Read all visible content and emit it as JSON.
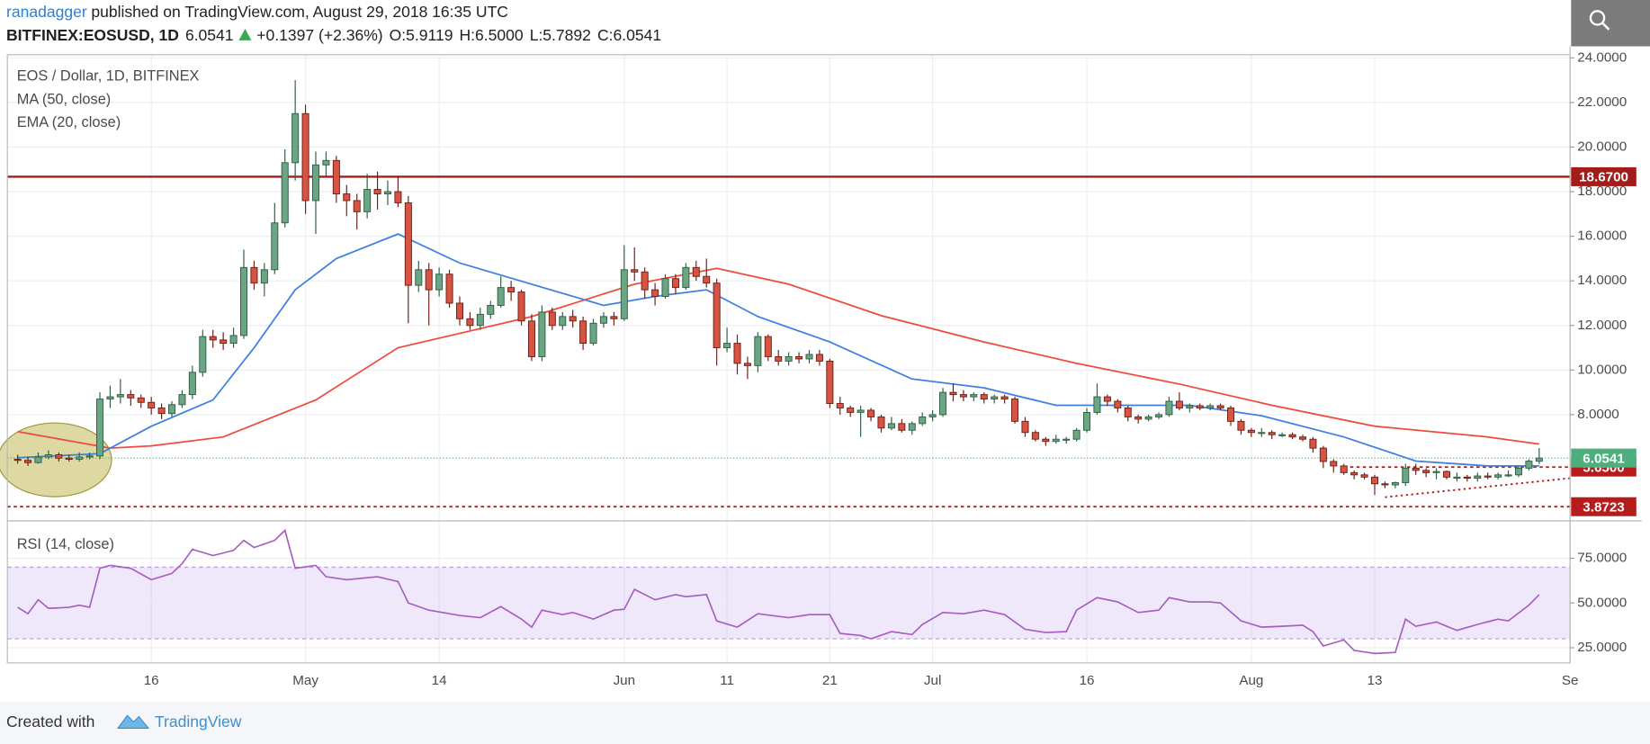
{
  "header": {
    "author": "ranadagger",
    "published": "published on TradingView.com, August 29, 2018 16:35 UTC",
    "symbol": "BITFINEX:EOSUSD, 1D",
    "change": "+0.1397 (+2.36%)",
    "ohlc": [
      "O:5.9119",
      "H:6.5000",
      "L:5.7892",
      "C:6.0541"
    ]
  },
  "footer": {
    "created": "Created with",
    "brand": "TradingView"
  },
  "chart_data": {
    "type": "candlestick",
    "title": "EOS / Dollar, 1D, BITFINEX",
    "up_color": "#6ba583",
    "down_color": "#d75442",
    "xlim": [
      "Apr 2",
      "Sep 1"
    ],
    "xticks": [
      {
        "value": "Apr 16",
        "label": "16"
      },
      {
        "value": "May 1",
        "label": "May"
      },
      {
        "value": "May 14",
        "label": "14"
      },
      {
        "value": "Jun 1",
        "label": "Jun"
      },
      {
        "value": "Jun 11",
        "label": "11"
      },
      {
        "value": "Jun 21",
        "label": "21"
      },
      {
        "value": "Jul 1",
        "label": "Jul"
      },
      {
        "value": "Jul 16",
        "label": "16"
      },
      {
        "value": "Aug 1",
        "label": "Aug"
      },
      {
        "value": "Aug 13",
        "label": "13"
      },
      {
        "value": "Sep 1",
        "label": "Se"
      }
    ],
    "ylim": [
      3.33,
      24.14
    ],
    "yticks": [
      {
        "value": 8,
        "label": "8.0000"
      },
      {
        "value": 10,
        "label": "10.0000"
      },
      {
        "value": 12,
        "label": "12.0000"
      },
      {
        "value": 14,
        "label": "14.0000"
      },
      {
        "value": 16,
        "label": "16.0000"
      },
      {
        "value": 18,
        "label": "18.0000"
      },
      {
        "value": 20,
        "label": "20.0000"
      },
      {
        "value": 22,
        "label": "22.0000"
      },
      {
        "value": 24,
        "label": "24.0000"
      }
    ],
    "grid": true,
    "x": [
      "Apr 3",
      "Apr 4",
      "Apr 5",
      "Apr 6",
      "Apr 7",
      "Apr 8",
      "Apr 9",
      "Apr 10",
      "Apr 11",
      "Apr 12",
      "Apr 13",
      "Apr 14",
      "Apr 15",
      "Apr 16",
      "Apr 17",
      "Apr 18",
      "Apr 19",
      "Apr 20",
      "Apr 21",
      "Apr 22",
      "Apr 23",
      "Apr 24",
      "Apr 25",
      "Apr 26",
      "Apr 27",
      "Apr 28",
      "Apr 29",
      "Apr 30",
      "May 1",
      "May 2",
      "May 3",
      "May 4",
      "May 5",
      "May 6",
      "May 7",
      "May 8",
      "May 9",
      "May 10",
      "May 11",
      "May 12",
      "May 13",
      "May 14",
      "May 15",
      "May 16",
      "May 17",
      "May 18",
      "May 19",
      "May 20",
      "May 21",
      "May 22",
      "May 23",
      "May 24",
      "May 25",
      "May 26",
      "May 27",
      "May 28",
      "May 29",
      "May 30",
      "May 31",
      "Jun 1",
      "Jun 2",
      "Jun 3",
      "Jun 4",
      "Jun 5",
      "Jun 6",
      "Jun 7",
      "Jun 8",
      "Jun 9",
      "Jun 10",
      "Jun 11",
      "Jun 12",
      "Jun 13",
      "Jun 14",
      "Jun 15",
      "Jun 16",
      "Jun 17",
      "Jun 18",
      "Jun 19",
      "Jun 20",
      "Jun 21",
      "Jun 22",
      "Jun 23",
      "Jun 24",
      "Jun 25",
      "Jun 26",
      "Jun 27",
      "Jun 28",
      "Jun 29",
      "Jun 30",
      "Jul 1",
      "Jul 2",
      "Jul 3",
      "Jul 4",
      "Jul 5",
      "Jul 6",
      "Jul 7",
      "Jul 8",
      "Jul 9",
      "Jul 10",
      "Jul 11",
      "Jul 12",
      "Jul 13",
      "Jul 14",
      "Jul 15",
      "Jul 16",
      "Jul 17",
      "Jul 18",
      "Jul 19",
      "Jul 20",
      "Jul 21",
      "Jul 22",
      "Jul 23",
      "Jul 24",
      "Jul 25",
      "Jul 26",
      "Jul 27",
      "Jul 28",
      "Jul 29",
      "Jul 30",
      "Jul 31",
      "Aug 1",
      "Aug 2",
      "Aug 3",
      "Aug 4",
      "Aug 5",
      "Aug 6",
      "Aug 7",
      "Aug 8",
      "Aug 9",
      "Aug 10",
      "Aug 11",
      "Aug 12",
      "Aug 13",
      "Aug 14",
      "Aug 15",
      "Aug 16",
      "Aug 17",
      "Aug 18",
      "Aug 19",
      "Aug 20",
      "Aug 21",
      "Aug 22",
      "Aug 23",
      "Aug 24",
      "Aug 25",
      "Aug 26",
      "Aug 27",
      "Aug 28",
      "Aug 29"
    ],
    "open": [
      6,
      5.95,
      5.85,
      6.1,
      6.2,
      6.05,
      6,
      6.1,
      6.15,
      8.7,
      8.8,
      8.9,
      8.75,
      8.55,
      8.3,
      8.05,
      8.45,
      8.9,
      9.9,
      11.5,
      11.35,
      11.2,
      11.55,
      14.6,
      13.9,
      14.5,
      16.6,
      19.3,
      21.5,
      17.6,
      19.2,
      19.4,
      17.9,
      17.6,
      17.1,
      18.1,
      17.9,
      18,
      17.5,
      13.8,
      14.5,
      13.6,
      14.3,
      13,
      12.3,
      12,
      12.5,
      12.9,
      13.7,
      13.5,
      12.2,
      10.6,
      12.6,
      12,
      12.4,
      12.2,
      11.2,
      12.1,
      12.4,
      12.3,
      14.5,
      14.4,
      13.6,
      13.3,
      14.1,
      13.7,
      14.6,
      14.2,
      13.9,
      11,
      11.2,
      10.3,
      10.2,
      11.5,
      10.6,
      10.4,
      10.6,
      10.5,
      10.7,
      10.4,
      8.5,
      8.3,
      8.1,
      8.2,
      7.9,
      7.4,
      7.6,
      7.3,
      7.6,
      7.9,
      8,
      9,
      8.9,
      8.8,
      8.9,
      8.7,
      8.8,
      8.7,
      7.7,
      7.2,
      6.9,
      6.8,
      6.9,
      6.9,
      7.3,
      8.1,
      8.8,
      8.6,
      8.3,
      7.9,
      7.8,
      7.9,
      8,
      8.6,
      8.3,
      8.4,
      8.3,
      8.4,
      8.3,
      7.7,
      7.3,
      7.2,
      7.2,
      7.1,
      7.1,
      7,
      6.9,
      6.5,
      5.9,
      5.7,
      5.4,
      5.3,
      5.2,
      4.9,
      4.85,
      4.95,
      5.6,
      5.5,
      5.4,
      5.45,
      5.2,
      5.2,
      5.15,
      5.25,
      5.2,
      5.3,
      5.3,
      5.6,
      5.9119
    ],
    "high": [
      6.2,
      6.1,
      6.3,
      6.4,
      6.3,
      6.2,
      6.3,
      6.3,
      9,
      9.3,
      9.6,
      9.1,
      8.9,
      8.8,
      8.5,
      8.6,
      9.1,
      10.2,
      11.8,
      11.8,
      11.7,
      11.9,
      15.4,
      14.9,
      14.8,
      17.5,
      19.9,
      23,
      21.9,
      19.8,
      19.8,
      19.6,
      18.3,
      17.9,
      18.8,
      18.9,
      18.5,
      18.7,
      17.8,
      14.9,
      14.8,
      14.6,
      14.5,
      13.3,
      12.6,
      12.8,
      13.1,
      14.2,
      14,
      13.6,
      12.5,
      12.9,
      12.8,
      12.6,
      12.7,
      12.4,
      12.3,
      12.6,
      12.6,
      15.6,
      15.5,
      14.6,
      13.9,
      14.3,
      14.3,
      14.8,
      14.9,
      15,
      14.1,
      11.9,
      11.6,
      10.6,
      11.7,
      11.6,
      10.9,
      10.8,
      10.8,
      10.9,
      10.9,
      10.5,
      8.8,
      8.4,
      8.4,
      8.3,
      8,
      7.9,
      7.8,
      7.7,
      8.1,
      8.2,
      9.2,
      9.4,
      9.1,
      9,
      9,
      8.9,
      8.9,
      8.8,
      7.9,
      7.3,
      7,
      7.1,
      7,
      7.4,
      8.3,
      9.4,
      8.9,
      8.7,
      8.4,
      8,
      8,
      8.1,
      8.8,
      9,
      8.5,
      8.5,
      8.5,
      8.5,
      8.4,
      7.8,
      7.4,
      7.4,
      7.3,
      7.2,
      7.2,
      7.1,
      7,
      6.6,
      6,
      5.8,
      5.5,
      5.4,
      5.3,
      5,
      5,
      5.8,
      5.8,
      5.6,
      5.6,
      5.5,
      5.4,
      5.3,
      5.4,
      5.4,
      5.4,
      5.5,
      5.7,
      6,
      6.5
    ],
    "low": [
      5.8,
      5.7,
      5.8,
      6,
      5.9,
      5.9,
      5.9,
      6,
      6,
      8.3,
      8.5,
      8.4,
      8.3,
      8,
      7.8,
      7.9,
      8.3,
      8.7,
      9.7,
      11,
      10.9,
      11,
      11.4,
      13.6,
      13.3,
      14.3,
      16.4,
      18.5,
      17,
      16.1,
      18.7,
      17.5,
      16.9,
      16.3,
      16.8,
      17.2,
      17.4,
      17.3,
      12.1,
      13.5,
      12,
      13.3,
      12.8,
      12,
      11.8,
      11.8,
      12.3,
      12.8,
      13.1,
      12,
      10.4,
      10.4,
      11.8,
      11.8,
      11.9,
      10.9,
      11.1,
      11.9,
      12,
      12.2,
      14,
      13.2,
      12.9,
      13.2,
      13.4,
      13.6,
      14,
      13.7,
      10.2,
      10.8,
      9.8,
      9.6,
      9.9,
      10.4,
      10.2,
      10.2,
      10.3,
      10.3,
      10.2,
      8.3,
      8,
      7.9,
      7,
      7.7,
      7.2,
      7.3,
      7.2,
      7.1,
      7.5,
      7.7,
      7.9,
      8.6,
      8.6,
      8.6,
      8.5,
      8.5,
      8.5,
      7.6,
      7,
      6.8,
      6.6,
      6.7,
      6.7,
      6.8,
      7.2,
      8,
      8.4,
      8.1,
      7.7,
      7.6,
      7.7,
      7.8,
      7.9,
      8.2,
      8.1,
      8.2,
      8.2,
      8.2,
      7.5,
      7.1,
      7,
      7,
      6.9,
      7,
      6.9,
      6.8,
      6.3,
      5.6,
      5.4,
      5.3,
      5.1,
      5.1,
      4.4,
      4.7,
      4.7,
      4.8,
      5.3,
      5.2,
      5.1,
      5.1,
      5,
      5,
      5,
      5.1,
      5.1,
      5.2,
      5.2,
      5.5,
      5.7892
    ],
    "close": [
      5.95,
      5.85,
      6.1,
      6.2,
      6.05,
      6,
      6.1,
      6.15,
      8.7,
      8.8,
      8.9,
      8.75,
      8.55,
      8.3,
      8.05,
      8.45,
      8.9,
      9.9,
      11.5,
      11.35,
      11.2,
      11.55,
      14.6,
      13.9,
      14.5,
      16.6,
      19.3,
      21.5,
      17.6,
      19.2,
      19.4,
      17.9,
      17.6,
      17.1,
      18.1,
      17.9,
      18,
      17.5,
      13.8,
      14.5,
      13.6,
      14.3,
      13,
      12.3,
      12,
      12.5,
      12.9,
      13.7,
      13.5,
      12.2,
      10.6,
      12.6,
      12,
      12.4,
      12.2,
      11.2,
      12.1,
      12.4,
      12.3,
      14.5,
      14.4,
      13.6,
      13.3,
      14.1,
      13.7,
      14.6,
      14.2,
      13.9,
      11,
      11.2,
      10.3,
      10.2,
      11.5,
      10.6,
      10.4,
      10.6,
      10.5,
      10.7,
      10.4,
      8.5,
      8.3,
      8.1,
      8.2,
      7.9,
      7.4,
      7.6,
      7.3,
      7.6,
      7.9,
      8,
      9,
      8.9,
      8.8,
      8.9,
      8.7,
      8.8,
      8.7,
      7.7,
      7.2,
      6.9,
      6.8,
      6.9,
      6.9,
      7.3,
      8.1,
      8.8,
      8.6,
      8.3,
      7.9,
      7.8,
      7.9,
      8,
      8.6,
      8.3,
      8.4,
      8.3,
      8.4,
      8.3,
      7.7,
      7.3,
      7.2,
      7.2,
      7.1,
      7.1,
      7,
      6.9,
      6.5,
      5.9,
      5.7,
      5.4,
      5.3,
      5.2,
      4.9,
      4.85,
      4.95,
      5.6,
      5.5,
      5.4,
      5.45,
      5.2,
      5.2,
      5.15,
      5.25,
      5.2,
      5.3,
      5.3,
      5.6,
      5.9144,
      6.0541
    ],
    "last_color": "#4caf7d",
    "series": [
      {
        "name": "MA (50, close)",
        "color": "#ef4a3c",
        "x": [
          "Apr 3",
          "Apr 12",
          "Apr 16",
          "Apr 23",
          "May 2",
          "May 10",
          "May 23",
          "Jun 2",
          "Jun 10",
          "Jun 17",
          "Jun 26",
          "Jul 6",
          "Jul 15",
          "Jul 25",
          "Aug 3",
          "Aug 13",
          "Aug 24",
          "Aug 29"
        ],
        "values": [
          7.24,
          6.5,
          6.6,
          7.0,
          8.66,
          11.0,
          12.4,
          13.85,
          14.56,
          13.85,
          12.44,
          11.26,
          10.3,
          9.37,
          8.42,
          7.48,
          7.0,
          6.68
        ]
      },
      {
        "name": "EMA (20, close)",
        "color": "#3f7fe0",
        "x": [
          "Apr 3",
          "Apr 11",
          "Apr 16",
          "Apr 22",
          "Apr 26",
          "Apr 30",
          "May 4",
          "May 10",
          "May 16",
          "May 23",
          "May 30",
          "Jun 4",
          "Jun 9",
          "Jun 14",
          "Jun 21",
          "Jun 29",
          "Jul 6",
          "Jul 13",
          "Jul 19",
          "Jul 26",
          "Aug 2",
          "Aug 10",
          "Aug 17",
          "Aug 24",
          "Aug 29"
        ],
        "values": [
          6.07,
          6.25,
          7.48,
          8.66,
          11.0,
          13.6,
          15.0,
          16.1,
          14.8,
          13.85,
          12.9,
          13.3,
          13.6,
          12.4,
          11.26,
          9.6,
          9.2,
          8.42,
          8.42,
          8.42,
          7.95,
          7.0,
          5.92,
          5.7,
          5.7
        ]
      }
    ],
    "levels": [
      {
        "value": 18.67,
        "label": "18.6700",
        "color": "#a31c1c",
        "style": "solid"
      },
      {
        "value": 5.65,
        "label": "5.6500",
        "color": "#b71c1c",
        "style": "dashed",
        "from": "Aug 10"
      },
      {
        "value": 3.8723,
        "label": "3.8723",
        "color": "#b71c1c",
        "style": "dashed"
      }
    ],
    "trendline": {
      "x": [
        "Aug 14",
        "Sep 1"
      ],
      "values": [
        4.3,
        5.15
      ],
      "color": "#b71c1c"
    },
    "rsi": {
      "name": "RSI (14, close)",
      "color": "#a65cc0",
      "band": [
        30,
        70
      ],
      "ylim": [
        16.5,
        94.7
      ],
      "yticks": [
        {
          "value": 25,
          "label": "25.0000"
        },
        {
          "value": 50,
          "label": "50.0000"
        },
        {
          "value": 75,
          "label": "75.0000"
        }
      ],
      "x": [
        "Apr 3",
        "Apr 4",
        "Apr 5",
        "Apr 6",
        "Apr 8",
        "Apr 9",
        "Apr 10",
        "Apr 11",
        "Apr 12",
        "Apr 14",
        "Apr 16",
        "Apr 18",
        "Apr 19",
        "Apr 20",
        "Apr 22",
        "Apr 24",
        "Apr 25",
        "Apr 26",
        "Apr 28",
        "Apr 29",
        "Apr 30",
        "May 2",
        "May 3",
        "May 5",
        "May 8",
        "May 10",
        "May 11",
        "May 13",
        "May 16",
        "May 18",
        "May 20",
        "May 22",
        "May 23",
        "May 24",
        "May 26",
        "May 27",
        "May 29",
        "May 31",
        "Jun 1",
        "Jun 2",
        "Jun 4",
        "Jun 6",
        "Jun 7",
        "Jun 9",
        "Jun 10",
        "Jun 12",
        "Jun 14",
        "Jun 17",
        "Jun 19",
        "Jun 21",
        "Jun 22",
        "Jun 24",
        "Jun 25",
        "Jun 27",
        "Jun 29",
        "Jun 30",
        "Jul 2",
        "Jul 4",
        "Jul 6",
        "Jul 8",
        "Jul 10",
        "Jul 12",
        "Jul 14",
        "Jul 15",
        "Jul 17",
        "Jul 19",
        "Jul 21",
        "Jul 23",
        "Jul 24",
        "Jul 26",
        "Jul 28",
        "Jul 29",
        "Jul 31",
        "Aug 2",
        "Aug 4",
        "Aug 6",
        "Aug 7",
        "Aug 8",
        "Aug 10",
        "Aug 11",
        "Aug 13",
        "Aug 15",
        "Aug 16",
        "Aug 17",
        "Aug 19",
        "Aug 21",
        "Aug 23",
        "Aug 25",
        "Aug 26",
        "Aug 28",
        "Aug 29"
      ],
      "values": [
        47.6,
        44,
        51.8,
        47,
        47.6,
        48.8,
        47.6,
        69.4,
        71,
        69.4,
        63,
        66.5,
        72,
        80,
        76.5,
        79.4,
        85,
        81,
        85,
        90.6,
        69.4,
        71,
        64.7,
        63,
        64.7,
        62,
        50,
        46,
        43,
        41.8,
        48,
        41,
        36.5,
        46,
        43.5,
        44.7,
        41,
        46,
        46.5,
        57.6,
        51.8,
        54.7,
        53.5,
        54.7,
        40,
        36.5,
        44,
        41.8,
        43.5,
        43.5,
        33,
        31.8,
        30,
        34,
        32.4,
        38,
        44.7,
        44,
        46,
        43.5,
        35.3,
        33.5,
        34,
        46,
        53,
        50.6,
        44.7,
        46,
        53,
        50.6,
        50.6,
        50,
        40,
        36.5,
        37,
        37.6,
        34,
        26,
        29.4,
        23.5,
        21.8,
        22.4,
        41,
        37,
        39.4,
        34.7,
        38,
        41,
        40,
        48.8,
        54.7
      ]
    }
  }
}
